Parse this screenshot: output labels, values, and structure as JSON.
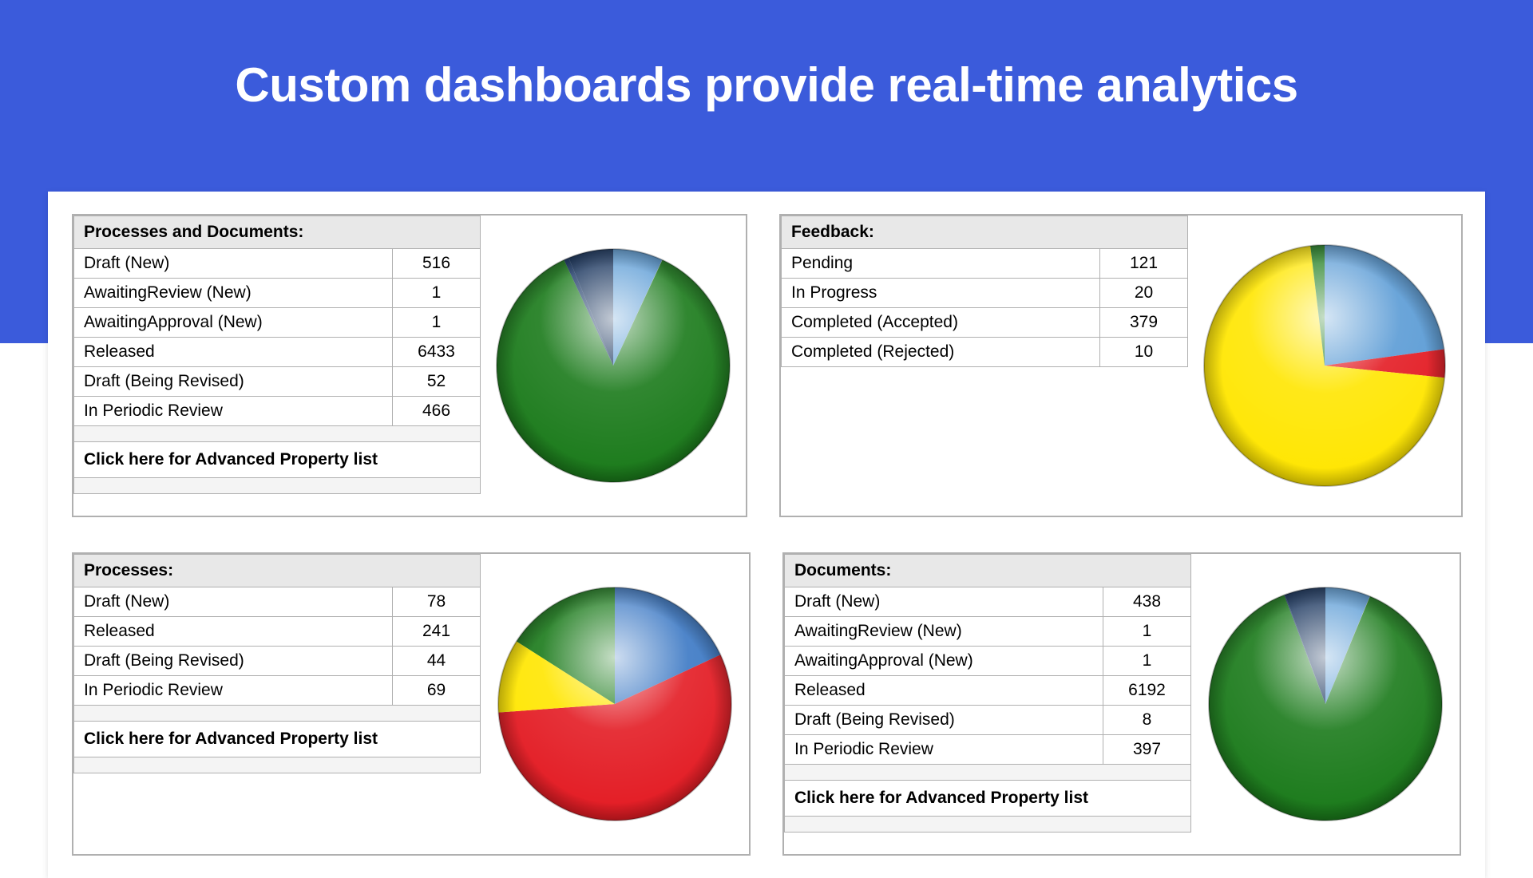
{
  "hero": {
    "title": "Custom dashboards provide real-time analytics",
    "bg_color": "#3b5bdb",
    "title_color": "#ffffff",
    "title_fontsize": 60
  },
  "advanced_link_text": "Click here for Advanced Property list",
  "panels": {
    "processes_and_documents": {
      "title": "Processes and Documents:",
      "rows": [
        {
          "label": "Draft (New)",
          "value": 516,
          "color": "#5a9bd5"
        },
        {
          "label": "AwaitingReview (New)",
          "value": 1,
          "color": "#d8d8d8"
        },
        {
          "label": "AwaitingApproval (New)",
          "value": 1,
          "color": "#f6a623"
        },
        {
          "label": "Released",
          "value": 6433,
          "color": "#1a7a1a"
        },
        {
          "label": "Draft (Being Revised)",
          "value": 52,
          "color": "#12305f"
        },
        {
          "label": "In Periodic Review",
          "value": 466,
          "color": "#0d2a55"
        }
      ],
      "has_advanced_link": true,
      "chart": {
        "type": "pie",
        "diameter": 300
      }
    },
    "feedback": {
      "title": "Feedback:",
      "rows": [
        {
          "label": "Pending",
          "value": 121,
          "color": "#5a9bd5"
        },
        {
          "label": "In Progress",
          "value": 20,
          "color": "#e31b23"
        },
        {
          "label": "Completed (Accepted)",
          "value": 379,
          "color": "#ffe600"
        },
        {
          "label": "Completed (Rejected)",
          "value": 10,
          "color": "#1a7a1a"
        }
      ],
      "has_advanced_link": false,
      "chart": {
        "type": "pie",
        "diameter": 310
      }
    },
    "processes": {
      "title": "Processes:",
      "rows": [
        {
          "label": "Draft (New)",
          "value": 78,
          "color": "#3b78c4"
        },
        {
          "label": "Released",
          "value": 241,
          "color": "#e31b23"
        },
        {
          "label": "Draft (Being Revised)",
          "value": 44,
          "color": "#ffe600"
        },
        {
          "label": "In Periodic Review",
          "value": 69,
          "color": "#1a7a1a"
        }
      ],
      "has_advanced_link": true,
      "chart": {
        "type": "pie",
        "diameter": 300
      }
    },
    "documents": {
      "title": "Documents:",
      "rows": [
        {
          "label": "Draft (New)",
          "value": 438,
          "color": "#5a9bd5"
        },
        {
          "label": "AwaitingReview (New)",
          "value": 1,
          "color": "#d8d8d8"
        },
        {
          "label": "AwaitingApproval (New)",
          "value": 1,
          "color": "#f6a623"
        },
        {
          "label": "Released",
          "value": 6192,
          "color": "#1a7a1a"
        },
        {
          "label": "Draft (Being Revised)",
          "value": 8,
          "color": "#12305f"
        },
        {
          "label": "In Periodic Review",
          "value": 397,
          "color": "#0d2a55"
        }
      ],
      "has_advanced_link": true,
      "chart": {
        "type": "pie",
        "diameter": 300
      }
    }
  },
  "style": {
    "panel_border_color": "#b0b0b0",
    "header_bg": "#e8e8e8",
    "spacer_bg": "#f4f4f4",
    "row_bg": "#ffffff",
    "font_family": "Arial",
    "table_fontsize": 21
  }
}
